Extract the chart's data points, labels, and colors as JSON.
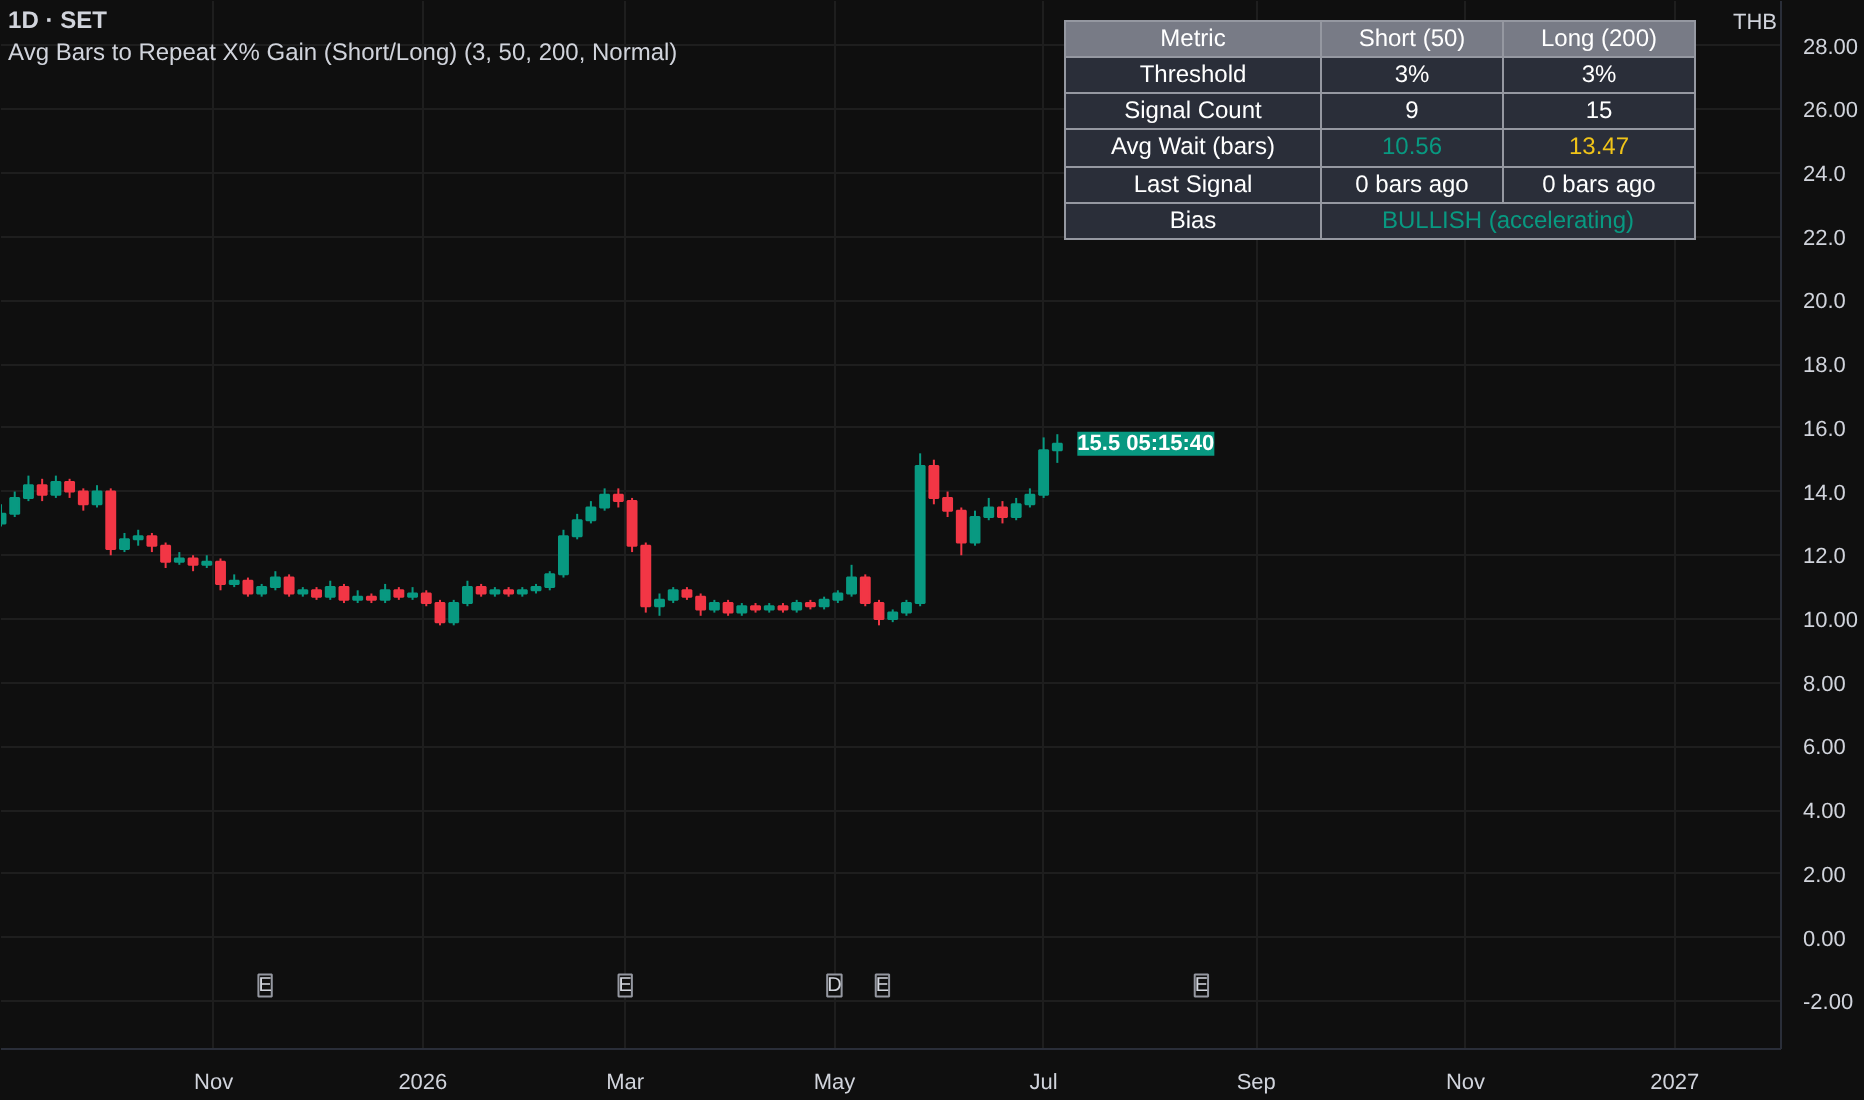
{
  "chart_data": [
    {
      "type": "candlestick",
      "title": "1D · SET",
      "subtitle": "Avg Bars to Repeat X% Gain (Short/Long) (3, 50, 200, Normal)",
      "ylabel": "THB",
      "x": [
        "2025-08-31",
        "2025-09-04",
        "2025-09-08",
        "2025-09-12",
        "2025-09-16",
        "2025-09-20",
        "2025-09-24",
        "2025-09-28",
        "2025-10-02",
        "2025-10-06",
        "2025-10-10",
        "2025-10-14",
        "2025-10-18",
        "2025-10-22",
        "2025-10-26",
        "2025-10-30",
        "2025-11-03",
        "2025-11-07",
        "2025-11-11",
        "2025-11-15",
        "2025-11-19",
        "2025-11-23",
        "2025-11-27",
        "2025-12-01",
        "2025-12-05",
        "2025-12-09",
        "2025-12-13",
        "2025-12-17",
        "2025-12-21",
        "2025-12-25",
        "2025-12-29",
        "2026-01-02",
        "2026-01-06",
        "2026-01-10",
        "2026-01-14",
        "2026-01-18",
        "2026-01-22",
        "2026-01-26",
        "2026-01-30",
        "2026-02-03",
        "2026-02-07",
        "2026-02-11",
        "2026-02-15",
        "2026-02-19",
        "2026-02-23",
        "2026-02-27",
        "2026-03-03",
        "2026-03-07",
        "2026-03-11",
        "2026-03-15",
        "2026-03-19",
        "2026-03-23",
        "2026-03-27",
        "2026-03-31",
        "2026-04-04",
        "2026-04-08",
        "2026-04-12",
        "2026-04-16",
        "2026-04-20",
        "2026-04-24",
        "2026-04-28",
        "2026-05-02",
        "2026-05-06",
        "2026-05-10",
        "2026-05-14",
        "2026-05-18",
        "2026-05-22",
        "2026-05-26",
        "2026-05-30",
        "2026-06-03",
        "2026-06-07",
        "2026-06-11",
        "2026-06-15",
        "2026-06-19",
        "2026-06-23",
        "2026-06-27",
        "2026-07-01",
        "2026-07-05"
      ],
      "ohlc": [
        [
          13.0,
          13.6,
          12.9,
          13.3
        ],
        [
          13.3,
          14.0,
          13.2,
          13.8
        ],
        [
          13.8,
          14.5,
          13.7,
          14.2
        ],
        [
          14.2,
          14.4,
          13.7,
          13.9
        ],
        [
          13.9,
          14.5,
          13.8,
          14.3
        ],
        [
          14.3,
          14.4,
          13.8,
          14.0
        ],
        [
          14.0,
          14.1,
          13.4,
          13.6
        ],
        [
          13.6,
          14.2,
          13.5,
          14.0
        ],
        [
          14.0,
          14.1,
          12.0,
          12.2
        ],
        [
          12.2,
          12.7,
          12.1,
          12.5
        ],
        [
          12.5,
          12.8,
          12.3,
          12.6
        ],
        [
          12.6,
          12.7,
          12.1,
          12.3
        ],
        [
          12.3,
          12.4,
          11.6,
          11.8
        ],
        [
          11.8,
          12.1,
          11.7,
          11.9
        ],
        [
          11.9,
          12.0,
          11.5,
          11.7
        ],
        [
          11.7,
          12.0,
          11.6,
          11.8
        ],
        [
          11.8,
          11.9,
          10.9,
          11.1
        ],
        [
          11.1,
          11.4,
          11.0,
          11.2
        ],
        [
          11.2,
          11.3,
          10.7,
          10.8
        ],
        [
          10.8,
          11.1,
          10.7,
          11.0
        ],
        [
          11.0,
          11.5,
          10.9,
          11.3
        ],
        [
          11.3,
          11.4,
          10.7,
          10.8
        ],
        [
          10.8,
          11.0,
          10.7,
          10.9
        ],
        [
          10.9,
          11.0,
          10.6,
          10.7
        ],
        [
          10.7,
          11.2,
          10.6,
          11.0
        ],
        [
          11.0,
          11.1,
          10.5,
          10.6
        ],
        [
          10.6,
          10.9,
          10.5,
          10.7
        ],
        [
          10.7,
          10.8,
          10.5,
          10.6
        ],
        [
          10.6,
          11.1,
          10.5,
          10.9
        ],
        [
          10.9,
          11.0,
          10.6,
          10.7
        ],
        [
          10.7,
          11.0,
          10.6,
          10.8
        ],
        [
          10.8,
          10.9,
          10.4,
          10.5
        ],
        [
          10.5,
          10.6,
          9.8,
          9.9
        ],
        [
          9.9,
          10.6,
          9.8,
          10.5
        ],
        [
          10.5,
          11.2,
          10.4,
          11.0
        ],
        [
          11.0,
          11.1,
          10.7,
          10.8
        ],
        [
          10.8,
          11.0,
          10.7,
          10.9
        ],
        [
          10.9,
          11.0,
          10.7,
          10.8
        ],
        [
          10.8,
          11.0,
          10.7,
          10.9
        ],
        [
          10.9,
          11.1,
          10.8,
          11.0
        ],
        [
          11.0,
          11.5,
          10.9,
          11.4
        ],
        [
          11.4,
          12.8,
          11.3,
          12.6
        ],
        [
          12.6,
          13.3,
          12.5,
          13.1
        ],
        [
          13.1,
          13.7,
          13.0,
          13.5
        ],
        [
          13.5,
          14.1,
          13.4,
          13.9
        ],
        [
          13.9,
          14.1,
          13.5,
          13.7
        ],
        [
          13.7,
          13.8,
          12.1,
          12.3
        ],
        [
          12.3,
          12.4,
          10.2,
          10.4
        ],
        [
          10.4,
          10.8,
          10.1,
          10.6
        ],
        [
          10.6,
          11.0,
          10.5,
          10.9
        ],
        [
          10.9,
          11.0,
          10.6,
          10.7
        ],
        [
          10.7,
          10.8,
          10.1,
          10.3
        ],
        [
          10.3,
          10.6,
          10.2,
          10.5
        ],
        [
          10.5,
          10.6,
          10.1,
          10.2
        ],
        [
          10.2,
          10.5,
          10.1,
          10.4
        ],
        [
          10.4,
          10.5,
          10.2,
          10.3
        ],
        [
          10.3,
          10.5,
          10.2,
          10.4
        ],
        [
          10.4,
          10.5,
          10.2,
          10.3
        ],
        [
          10.3,
          10.6,
          10.2,
          10.5
        ],
        [
          10.5,
          10.6,
          10.3,
          10.4
        ],
        [
          10.4,
          10.7,
          10.3,
          10.6
        ],
        [
          10.6,
          10.9,
          10.5,
          10.8
        ],
        [
          10.8,
          11.7,
          10.7,
          11.3
        ],
        [
          11.3,
          11.4,
          10.4,
          10.5
        ],
        [
          10.5,
          10.6,
          9.8,
          10.0
        ],
        [
          10.0,
          10.3,
          9.9,
          10.2
        ],
        [
          10.2,
          10.6,
          10.1,
          10.5
        ],
        [
          10.5,
          15.2,
          10.4,
          14.8
        ],
        [
          14.8,
          15.0,
          13.6,
          13.8
        ],
        [
          13.8,
          14.0,
          13.2,
          13.4
        ],
        [
          13.4,
          13.5,
          12.0,
          12.4
        ],
        [
          12.4,
          13.4,
          12.3,
          13.2
        ],
        [
          13.2,
          13.8,
          13.1,
          13.5
        ],
        [
          13.5,
          13.7,
          13.0,
          13.2
        ],
        [
          13.2,
          13.8,
          13.1,
          13.6
        ],
        [
          13.6,
          14.1,
          13.5,
          13.9
        ],
        [
          13.9,
          15.7,
          13.8,
          15.3
        ],
        [
          15.3,
          15.8,
          14.9,
          15.5
        ]
      ],
      "xlim": [
        "2025-08-31",
        "2027-02-01"
      ],
      "xticks": [
        {
          "value": "2025-11-01",
          "label": "Nov"
        },
        {
          "value": "2026-01-01",
          "label": "2026"
        },
        {
          "value": "2026-03-01",
          "label": "Mar"
        },
        {
          "value": "2026-05-01",
          "label": "May"
        },
        {
          "value": "2026-07-01",
          "label": "Jul"
        },
        {
          "value": "2026-09-01",
          "label": "Sep"
        },
        {
          "value": "2026-11-01",
          "label": "Nov"
        },
        {
          "value": "2027-01-01",
          "label": "2027"
        }
      ],
      "ylim": [
        -3.5,
        29.4
      ],
      "yticks": [
        {
          "value": -2,
          "label": "-2.00"
        },
        {
          "value": 0,
          "label": "0.00"
        },
        {
          "value": 2,
          "label": "2.00"
        },
        {
          "value": 4,
          "label": "4.00"
        },
        {
          "value": 6,
          "label": "6.00"
        },
        {
          "value": 8,
          "label": "8.00"
        },
        {
          "value": 10,
          "label": "10.00"
        },
        {
          "value": 12,
          "label": "12.0"
        },
        {
          "value": 14,
          "label": "14.0"
        },
        {
          "value": 16,
          "label": "16.0"
        },
        {
          "value": 18,
          "label": "18.0"
        },
        {
          "value": 20,
          "label": "20.0"
        },
        {
          "value": 22,
          "label": "22.0"
        },
        {
          "value": 24,
          "label": "24.0"
        },
        {
          "value": 26,
          "label": "26.00"
        },
        {
          "value": 28,
          "label": "28.00"
        }
      ],
      "grid": true,
      "annotations": [
        {
          "text": "15.5 05:15:40",
          "x": "2026-07-05",
          "y": 15.5
        },
        {
          "text": "E",
          "x": "2025-11-16"
        },
        {
          "text": "E",
          "x": "2026-03-01"
        },
        {
          "text": "D",
          "x": "2026-05-01"
        },
        {
          "text": "E",
          "x": "2026-05-15"
        },
        {
          "text": "E",
          "x": "2026-08-16"
        }
      ]
    },
    {
      "type": "other",
      "cell_labels": [
        [
          "Metric",
          "Short (50)",
          "Long (200)"
        ],
        [
          "Threshold",
          "3%",
          "3%"
        ],
        [
          "Signal Count",
          "9",
          "15"
        ],
        [
          "Avg Wait (bars)",
          "10.56",
          "13.47"
        ],
        [
          "Last Signal",
          "0 bars ago",
          "0 bars ago"
        ],
        [
          "Bias",
          "BULLISH (accelerating)"
        ]
      ],
      "colors": [
        [
          null,
          null,
          null
        ],
        [
          null,
          null,
          null
        ],
        [
          null,
          null,
          null
        ],
        [
          null,
          "#089981",
          "#f0c419"
        ],
        [
          null,
          null,
          null
        ],
        [
          null,
          "#089981"
        ]
      ]
    }
  ]
}
